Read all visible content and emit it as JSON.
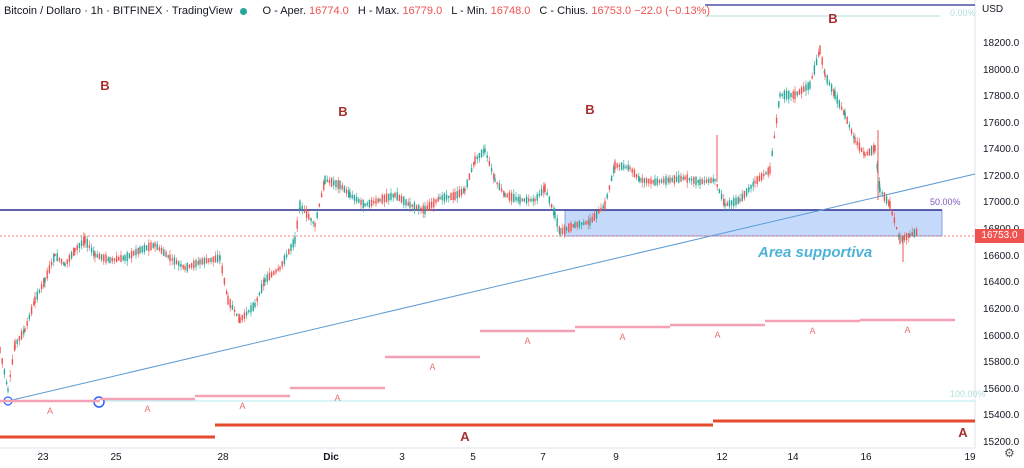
{
  "header": {
    "symbol": "Bitcoin / Dollaro · 1h · BITFINEX · TradingView",
    "open_label": "O - Aper.",
    "open": "16774.0",
    "high_label": "H - Max.",
    "high": "16779.0",
    "low_label": "L - Min.",
    "low": "16748.0",
    "close_label": "C - Chius.",
    "close": "16753.0",
    "change": "−22.0 (−0.13%)"
  },
  "axis": {
    "currency": "USD",
    "price_labels": [
      "18200.0",
      "18000.0",
      "17800.0",
      "17600.0",
      "17400.0",
      "17200.0",
      "17000.0",
      "16800.0",
      "16600.0",
      "16400.0",
      "16200.0",
      "16000.0",
      "15800.0",
      "15600.0",
      "15400.0",
      "15200.0"
    ],
    "date_labels": [
      "23",
      "25",
      "28",
      "Dic",
      "3",
      "5",
      "7",
      "9",
      "12",
      "14",
      "16",
      "19"
    ],
    "last_price": "16753.0"
  },
  "annotations": {
    "area_label": "Area supportiva",
    "fib_50": "50.00%",
    "fib_0": "0.00%",
    "fib_100": "100.00%",
    "wave_b": "B",
    "wave_a": "A"
  },
  "colors": {
    "up": "#26a69a",
    "down": "#ef5350",
    "support_zone": "#bbd4fb",
    "resistance_line": "#2a2e8f",
    "trend_line": "#5b9bd5",
    "wave_a_line": "#f4a0b5",
    "base_line": "#e64a2e",
    "label_b": "#a83232",
    "label_a_small": "#e57373"
  }
}
